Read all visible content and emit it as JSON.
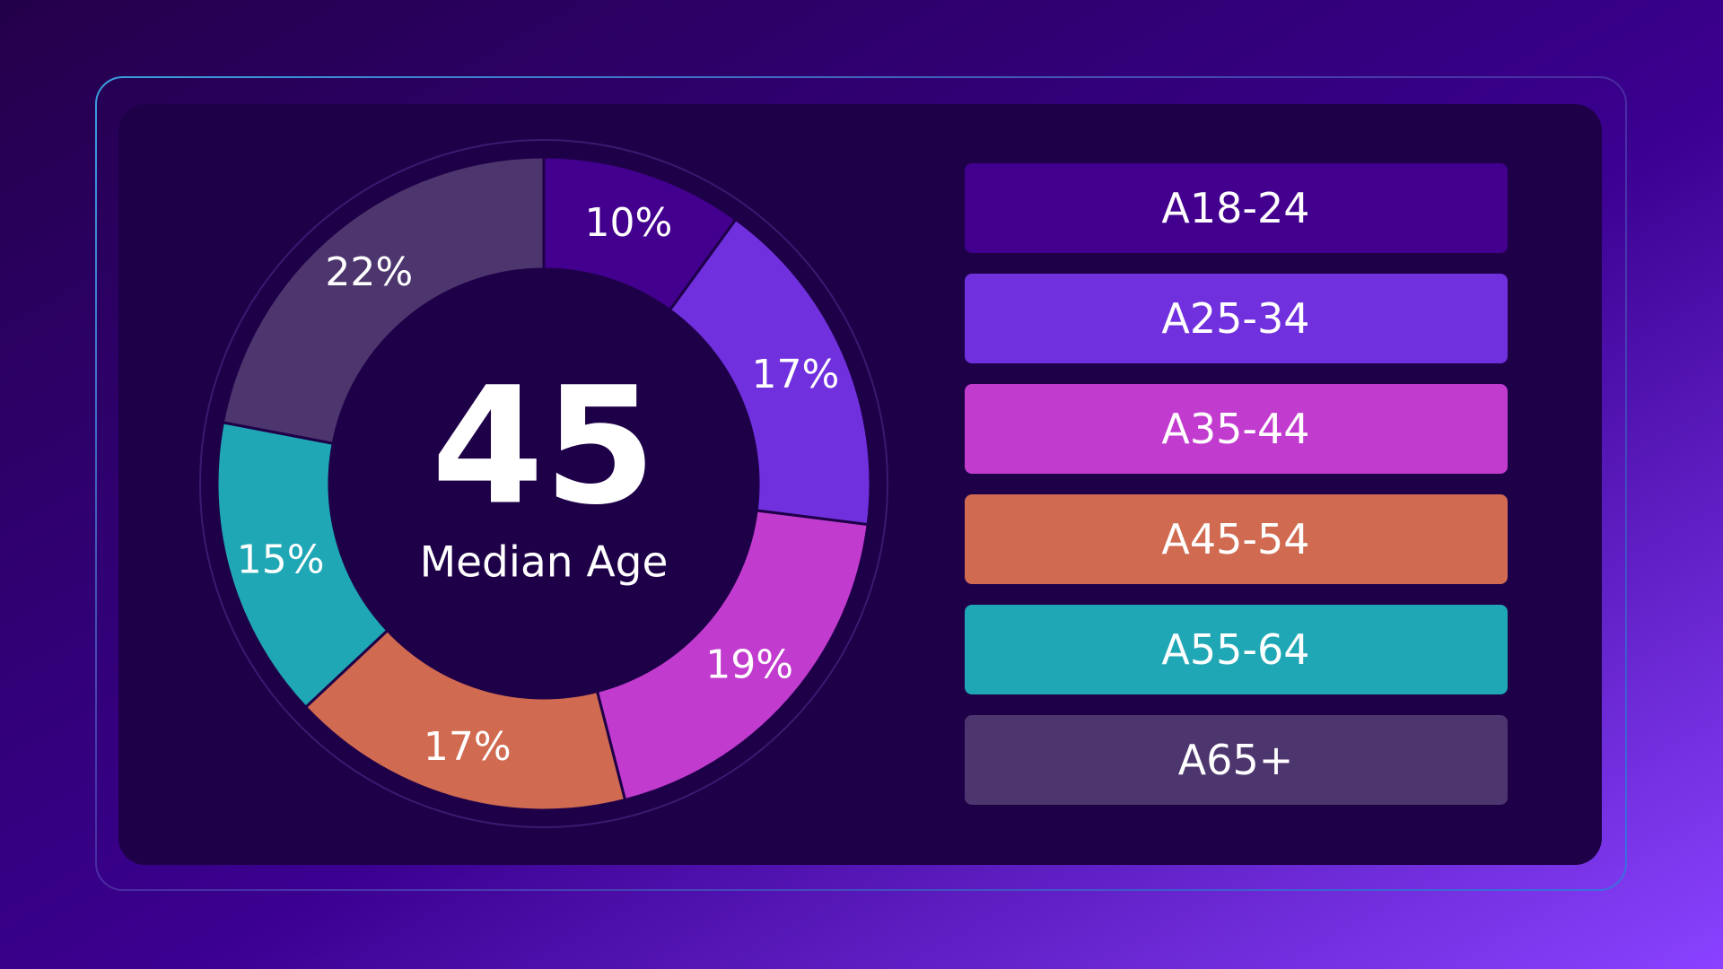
{
  "chart_data": {
    "type": "donut",
    "center_value": 45,
    "center_text": "Median Age",
    "categories": [
      "A18-24",
      "A25-34",
      "A35-44",
      "A45-54",
      "A55-64",
      "A65+"
    ],
    "values": [
      10,
      17,
      19,
      17,
      15,
      22
    ],
    "value_labels": [
      "10%",
      "17%",
      "19%",
      "17%",
      "15%",
      "22%"
    ],
    "colors": [
      "#43008f",
      "#7130de",
      "#c23bcf",
      "#d06a50",
      "#1fa7b5",
      "#4d356e"
    ]
  }
}
